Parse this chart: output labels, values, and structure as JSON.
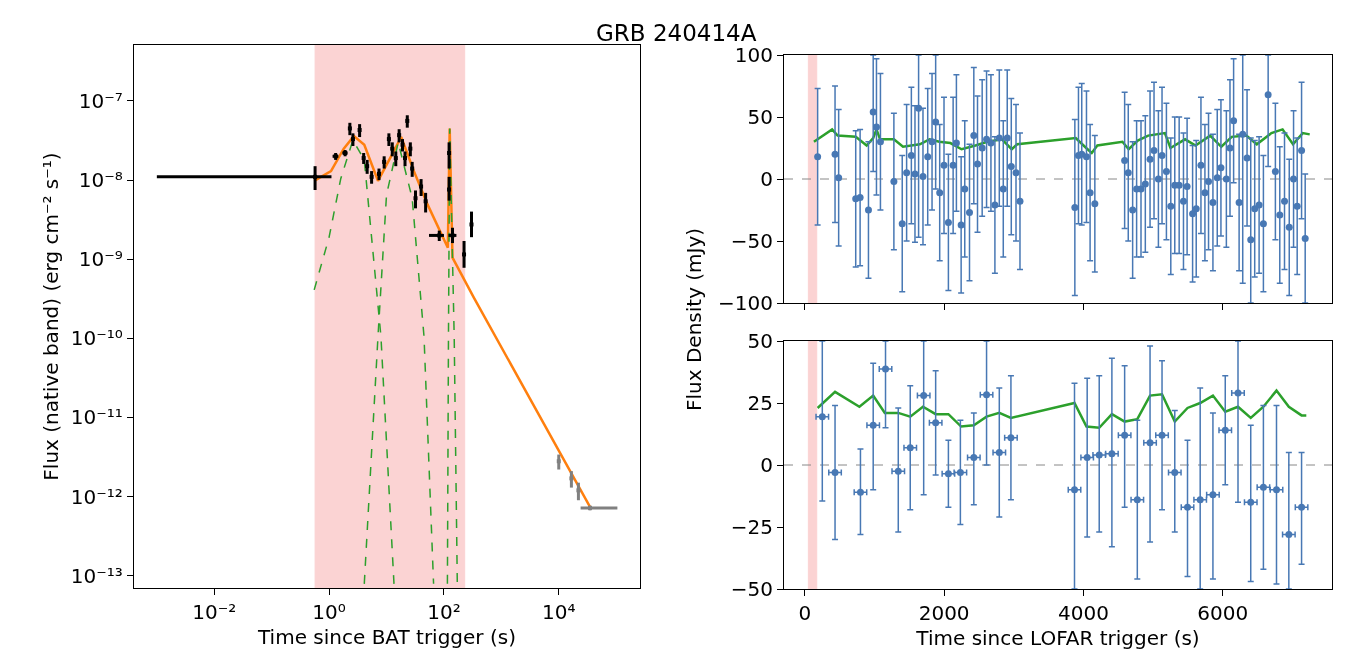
{
  "chart_data": [
    {
      "type": "scatter",
      "title": "GRB 240414A",
      "xlabel": "Time since BAT trigger (s)",
      "ylabel": "Flux (native band) (erg cm⁻² s⁻¹)",
      "log": "xy",
      "xlim": [
        0.0004,
        260000
      ],
      "ylim": [
        7e-14,
        5.1e-07
      ],
      "xticks": [
        {
          "value": 0.01,
          "label": "10⁻²"
        },
        {
          "value": 1,
          "label": "10⁰"
        },
        {
          "value": 100,
          "label": "10²"
        },
        {
          "value": 10000,
          "label": "10⁴"
        }
      ],
      "yticks": [
        {
          "value": 1e-13,
          "label": "10⁻¹³"
        },
        {
          "value": 1e-12,
          "label": "10⁻¹²"
        },
        {
          "value": 1e-11,
          "label": "10⁻¹¹"
        },
        {
          "value": 1e-10,
          "label": "10⁻¹⁰"
        },
        {
          "value": 1e-09,
          "label": "10⁻⁹"
        },
        {
          "value": 1e-08,
          "label": "10⁻⁸"
        },
        {
          "value": 1e-07,
          "label": "10⁻⁷"
        }
      ],
      "bands": [
        {
          "axis": "x",
          "from": 0.57,
          "to": 230,
          "color": "#fbd3d3"
        }
      ],
      "series": [
        {
          "type": "scatter",
          "color": "#000000",
          "x": [
            0.57,
            1.3,
            1.9,
            2.3,
            2.6,
            3.4,
            4.0,
            4.6,
            5.5,
            7.4,
            9.1,
            11,
            12.6,
            14.5,
            16.6,
            19,
            21,
            23,
            26,
            28,
            32,
            40,
            48,
            83,
            123,
            123,
            141,
            224,
            302
          ],
          "values": [
            1.1e-08,
            2e-08,
            2.2e-08,
            4.5e-08,
            3.3e-08,
            4.3e-08,
            1.9e-08,
            1.5e-08,
            1.1e-08,
            1.2e-08,
            1.7e-08,
            3.3e-08,
            2.5e-08,
            1.9e-08,
            3.7e-08,
            2.8e-08,
            1.9e-08,
            5.6e-08,
            2.5e-08,
            1.4e-08,
            5.9e-09,
            8.3e-09,
            5.4e-09,
            2e-09,
            7.6e-09,
            2.2e-08,
            2e-09,
            1.15e-09,
            2.75e-09
          ],
          "errors": [
            [
              7.5e-09,
              1.5e-08
            ],
            2e-09,
            2e-09,
            8e-09,
            6e-09,
            8e-09,
            3e-09,
            3e-09,
            2e-09,
            2e-09,
            3e-09,
            6e-09,
            5e-09,
            4e-09,
            7e-09,
            5e-09,
            4e-09,
            1e-08,
            5e-09,
            3e-09,
            1.5e-09,
            2e-09,
            1.5e-09,
            3e-10,
            [
              5.5e-09,
              1.1e-08
            ],
            [
              1.4e-08,
              3e-08
            ],
            [
              1.6e-09,
              2.5e-09
            ],
            [
              7.8e-10,
              1.7e-09
            ],
            [
              1.9e-09,
              4e-09
            ]
          ],
          "xerrors": [
            [
              0.001,
              1.1
            ],
            0.15,
            0.2,
            null,
            null,
            null,
            null,
            null,
            null,
            null,
            null,
            null,
            null,
            null,
            null,
            null,
            null,
            null,
            null,
            null,
            null,
            null,
            null,
            [
              55,
              100
            ],
            null,
            null,
            [
              120,
              165
            ],
            null,
            null
          ]
        },
        {
          "type": "scatter",
          "color": "#808080",
          "x": [
            10000,
            16600,
            22000,
            35000
          ],
          "values": [
            2.8e-12,
            1.7e-12,
            1.2e-12,
            7.2e-13
          ],
          "errors": [
            6e-13,
            4e-13,
            3e-13,
            5e-14
          ],
          "xerrors": [
            null,
            null,
            null,
            [
              24000,
              105000
            ]
          ]
        },
        {
          "type": "line",
          "color": "#ff7f0e",
          "x": [
            0.55,
            1.08,
            1.8,
            2.7,
            4.1,
            7.1,
            12,
            18,
            30,
            52,
            117,
            126,
            141,
            330,
            35000
          ],
          "values": [
            9.8e-09,
            1.3e-08,
            2.5e-08,
            3.6e-08,
            2.8e-08,
            9.8e-09,
            2e-08,
            3.5e-08,
            1.3e-08,
            4.9e-09,
            1.4e-09,
            4.5e-08,
            1.05e-09,
            3.3e-10,
            7.4e-13
          ]
        },
        {
          "type": "line",
          "color": "#2ca02c",
          "line_style": "dashed",
          "x": [
            0.55,
            1.0,
            1.6,
            2.6,
            4.1,
            8,
            13.5
          ],
          "values": [
            4.1e-10,
            1.9e-09,
            1.05e-08,
            3.2e-08,
            1.8e-08,
            1.05e-10,
            7.9e-14
          ]
        },
        {
          "type": "line",
          "color": "#2ca02c",
          "line_style": "dashed",
          "x": [
            4.1,
            7.1,
            10,
            16,
            28,
            45,
            66
          ],
          "values": [
            7.9e-14,
            1.05e-10,
            6.5e-09,
            3e-08,
            5.9e-09,
            1.05e-10,
            7.9e-14
          ]
        },
        {
          "type": "line",
          "color": "#2ca02c",
          "line_style": "dashed",
          "x": [
            115,
            120,
            126,
            151,
            171
          ],
          "values": [
            7.9e-14,
            1.05e-10,
            4.5e-08,
            1.05e-10,
            7.9e-14
          ]
        }
      ]
    },
    {
      "type": "scatter",
      "ylabel": "Flux Density (mJy)",
      "tick_labels": "y",
      "xlim": [
        -300,
        7570
      ],
      "ylim": [
        -100,
        100
      ],
      "xticks": [
        0,
        2000,
        4000,
        6000
      ],
      "yticks": [
        -100,
        -50,
        0,
        50,
        100
      ],
      "bands": [
        {
          "axis": "x",
          "from": 50,
          "to": 170,
          "color": "#fbd3d3"
        }
      ],
      "ref_lines": [
        {
          "axis": "y",
          "value": 0,
          "color": "#888888",
          "line_style": "dashed"
        }
      ],
      "series": [
        {
          "type": "scatter",
          "marker": "circle",
          "color": "#4878b4",
          "x": [
            183,
            433,
            485,
            730,
            793,
            913,
            981,
            1028,
            1085,
            1278,
            1398,
            1461,
            1529,
            1581,
            1633,
            1696,
            1764,
            1826,
            1878,
            1936,
            1998,
            2061,
            2129,
            2176,
            2244,
            2296,
            2364,
            2426,
            2479,
            2546,
            2609,
            2672,
            2729,
            2792,
            2849,
            2906,
            2964,
            3032,
            3089,
            3877,
            3929,
            3976,
            4044,
            4096,
            4164,
            4592,
            4644,
            4707,
            4764,
            4827,
            4889,
            4957,
            5014,
            5077,
            5129,
            5192,
            5255,
            5312,
            5375,
            5437,
            5489,
            5568,
            5620,
            5688,
            5745,
            5797,
            5860,
            5922,
            5975,
            6053,
            6105,
            6157,
            6236,
            6288,
            6350,
            6403,
            6460,
            6523,
            6585,
            6653,
            6757,
            6820,
            6888,
            6956,
            7018,
            7070,
            7133,
            7185
          ],
          "values": [
            18,
            20,
            1,
            -16,
            -15,
            -25,
            54,
            42,
            30,
            -2,
            -36,
            5,
            19,
            4,
            57,
            2,
            18,
            30,
            46,
            -11,
            11,
            -35,
            11,
            29,
            -37,
            -8,
            -27,
            35,
            12,
            25,
            32,
            29,
            -21,
            33,
            -8,
            33,
            10,
            5,
            -18,
            -23,
            19,
            20,
            18,
            -11,
            -20,
            15,
            5,
            -25,
            -8,
            -8,
            -4,
            16,
            23,
            0,
            19,
            6,
            -22,
            -5,
            -5,
            -18,
            -6,
            -28,
            -24,
            11,
            -11,
            -2,
            -19,
            1,
            9,
            0,
            25,
            47,
            -19,
            36,
            17,
            -49,
            -24,
            -21,
            -36,
            68,
            6,
            -29,
            -18,
            -39,
            0,
            -22,
            23,
            -48
          ],
          "errors": [
            55,
            55,
            55,
            55,
            55,
            55,
            [
              6,
              100
            ],
            55,
            55,
            55,
            55,
            55,
            55,
            55,
            [
              -47,
              100
            ],
            55,
            55,
            55,
            54,
            55,
            55,
            55,
            55,
            55,
            55,
            55,
            55,
            55,
            55,
            55,
            55,
            55,
            55,
            55,
            55,
            55,
            55,
            55,
            55,
            71,
            55,
            57,
            53,
            55,
            55,
            55,
            55,
            55,
            55,
            55,
            55,
            55,
            55,
            55,
            55,
            55,
            55,
            55,
            55,
            55,
            55,
            55,
            55,
            55,
            55,
            55,
            55,
            55,
            55,
            55,
            55,
            50,
            55,
            [
              -84,
              100
            ],
            55,
            [
              -100,
              33
            ],
            55,
            55,
            55,
            [
              10,
              100
            ],
            55,
            55,
            55,
            55,
            55,
            55,
            55,
            [
              -100,
              4
            ]
          ]
        },
        {
          "type": "line",
          "color": "#2ca02c",
          "x": [
            130,
            391,
            470,
            730,
            887,
            981,
            1028,
            1080,
            1278,
            1409,
            1650,
            1790,
            1930,
            2090,
            2250,
            2450,
            2620,
            2830,
            2970,
            3050,
            3890,
            4040,
            4120,
            4200,
            4560,
            4650,
            4780,
            4930,
            5170,
            5250,
            5460,
            5610,
            5820,
            5980,
            6130,
            6340,
            6490,
            6700,
            6860,
            7010,
            7150,
            7250
          ],
          "values": [
            30,
            40,
            35,
            34,
            27,
            33,
            40,
            32,
            32,
            26,
            28,
            32,
            30,
            29,
            24,
            27,
            30,
            32,
            24,
            28,
            33,
            25,
            21,
            27,
            30,
            24,
            31,
            35,
            37,
            25,
            32,
            27,
            35,
            26,
            34,
            35,
            28,
            37,
            40,
            28,
            37,
            36
          ]
        }
      ]
    },
    {
      "type": "scatter",
      "xlabel": "Time since LOFAR trigger (s)",
      "xlim": [
        -300,
        7570
      ],
      "ylim": [
        -50,
        50
      ],
      "xticks": [
        0,
        2000,
        4000,
        6000
      ],
      "yticks": [
        -50,
        -25,
        0,
        25,
        50
      ],
      "bands": [
        {
          "axis": "x",
          "from": 50,
          "to": 170,
          "color": "#fbd3d3"
        }
      ],
      "ref_lines": [
        {
          "axis": "y",
          "value": 0,
          "color": "#888888",
          "line_style": "dashed"
        }
      ],
      "series": [
        {
          "type": "scatter",
          "marker": "circle",
          "color": "#4878b4",
          "x": [
            250,
            433,
            798,
            981,
            1158,
            1341,
            1513,
            1706,
            1878,
            2061,
            2233,
            2426,
            2609,
            2792,
            2959,
            3872,
            4054,
            4227,
            4409,
            4592,
            4774,
            4957,
            5129,
            5312,
            5495,
            5677,
            5860,
            6037,
            6220,
            6403,
            6585,
            6773,
            6950,
            7133
          ],
          "values": [
            19.5,
            -3,
            -11,
            16,
            38.7,
            -2.5,
            7,
            28,
            17,
            -3.5,
            -3,
            3,
            28.3,
            5,
            11,
            -10,
            3,
            4,
            4.5,
            12,
            -14,
            9,
            12,
            -3,
            -17,
            -14,
            -12,
            14,
            29,
            -15,
            -9,
            -10,
            -28,
            -17
          ],
          "errors": [
            [
              -14.5,
              50
            ],
            [
              -30,
              24
            ],
            [
              -28,
              6.5
            ],
            [
              -10,
              41
            ],
            [
              15,
              50
            ],
            [
              -27,
              23
            ],
            [
              -18,
              32
            ],
            [
              -12,
              50
            ],
            [
              -4,
              38
            ],
            [
              -17,
              10
            ],
            [
              -24,
              18
            ],
            [
              -16,
              21
            ],
            [
              0,
              50
            ],
            [
              -21,
              31
            ],
            [
              -14,
              36
            ],
            [
              -50,
              33
            ],
            [
              -29,
              35
            ],
            [
              -27,
              36
            ],
            [
              -33,
              43
            ],
            [
              -17,
              40
            ],
            [
              -46,
              18
            ],
            [
              -31,
              48
            ],
            [
              -18,
              42
            ],
            [
              -27,
              22
            ],
            [
              -45,
              10
            ],
            [
              -50,
              31
            ],
            [
              -46,
              21
            ],
            [
              -8,
              36
            ],
            [
              -15,
              50
            ],
            [
              -47,
              16
            ],
            [
              -42,
              24
            ],
            [
              -48,
              24
            ],
            [
              -50,
              5
            ],
            [
              -40,
              5
            ]
          ],
          "xerrors": [
            90,
            90,
            90,
            90,
            90,
            90,
            90,
            90,
            90,
            90,
            90,
            90,
            90,
            90,
            90,
            90,
            90,
            90,
            90,
            90,
            90,
            90,
            90,
            90,
            90,
            90,
            90,
            90,
            90,
            90,
            90,
            90,
            90,
            90
          ]
        },
        {
          "type": "line",
          "color": "#2ca02c",
          "x": [
            183,
            433,
            783,
            981,
            1148,
            1341,
            1513,
            1696,
            1878,
            2061,
            2244,
            2426,
            2609,
            2792,
            2959,
            3872,
            4044,
            4227,
            4409,
            4592,
            4774,
            4957,
            5129,
            5312,
            5495,
            5677,
            5860,
            6037,
            6220,
            6403,
            6585,
            6773,
            6950,
            7133,
            7201
          ],
          "values": [
            23,
            29.5,
            23.5,
            28,
            21,
            21,
            19.5,
            23.5,
            20.5,
            20.5,
            15.5,
            16,
            19.5,
            21,
            19,
            25,
            15.5,
            15,
            20.5,
            17.5,
            18.5,
            28,
            28.5,
            17.5,
            23,
            25,
            28,
            21.5,
            23.5,
            19,
            23.5,
            30,
            23.5,
            20,
            20
          ]
        }
      ]
    }
  ]
}
